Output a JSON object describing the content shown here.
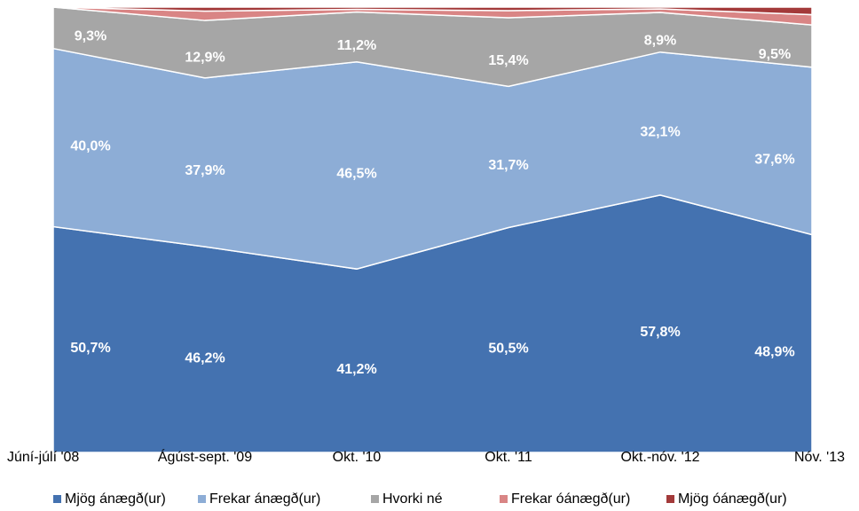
{
  "chart_data": {
    "type": "stacked-area",
    "categories": [
      "Júní-júlí '08",
      "Ágúst-sept. '09",
      "Okt. '10",
      "Okt. '11",
      "Okt.-nóv. '12",
      "Nóv. '13"
    ],
    "ylim": [
      0,
      100
    ],
    "legend": "bottom",
    "series": [
      {
        "name": "Mjög ánægð(ur)",
        "color": "#4472b0",
        "values": [
          50.7,
          46.2,
          41.2,
          50.5,
          57.8,
          48.9
        ],
        "value_labels": [
          "50,7%",
          "46,2%",
          "41,2%",
          "50,5%",
          "57,8%",
          "48,9%"
        ]
      },
      {
        "name": "Frekar ánægð(ur)",
        "color": "#8dadd6",
        "values": [
          40.0,
          37.9,
          46.5,
          31.7,
          32.1,
          37.6
        ],
        "value_labels": [
          "40,0%",
          "37,9%",
          "46,5%",
          "31,7%",
          "32,1%",
          "37,6%"
        ]
      },
      {
        "name": "Hvorki né",
        "color": "#a6a6a6",
        "values": [
          9.3,
          12.9,
          11.2,
          15.4,
          8.9,
          9.5
        ],
        "value_labels": [
          "9,3%",
          "12,9%",
          "11,2%",
          "15,4%",
          "8,9%",
          "9,5%"
        ]
      },
      {
        "name": "Frekar óánægð(ur)",
        "color": "#d98585",
        "values": [
          0,
          2.1,
          0.6,
          1.6,
          0.8,
          2.3
        ]
      },
      {
        "name": "Mjög óánægð(ur)",
        "color": "#a33a3a",
        "values": [
          0,
          0.9,
          0.5,
          0.8,
          0.4,
          1.7
        ]
      }
    ]
  }
}
